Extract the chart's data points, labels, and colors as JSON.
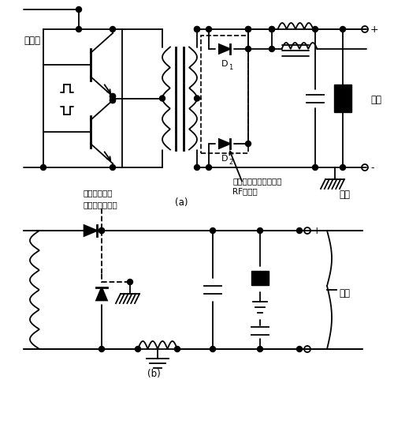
{
  "background": "#ffffff",
  "text_color": "#000000",
  "label_a": "(a)",
  "label_b": "(b)",
  "label_bianhuan": "变换器",
  "label_shuchu": "输出",
  "label_jike": "机壳",
  "label_note1": "注意：散热器是机壳的",
  "label_note2": "RF公共端",
  "label_anzhuang1": "安装在机壳上",
  "label_anzhuang2": "的二极管散热器",
  "label_shuchu_b": "输出",
  "label_D1": "D",
  "label_D2": "D",
  "font_size": 8.5,
  "lw": 1.3
}
